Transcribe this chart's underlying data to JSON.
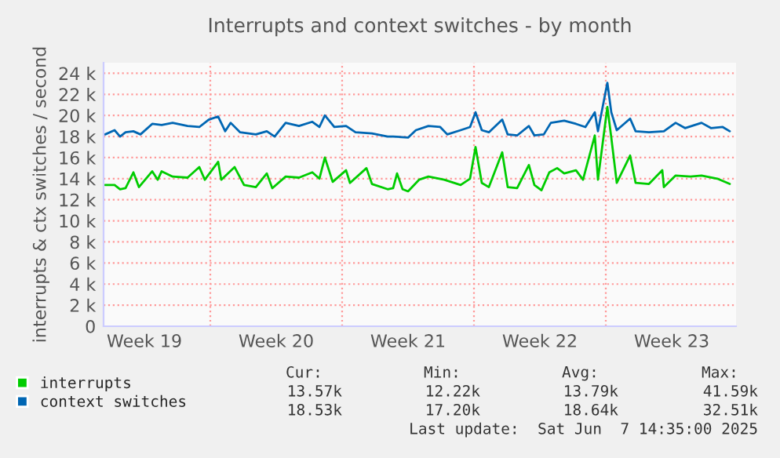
{
  "chart_data": {
    "type": "line",
    "title": "Interrupts and context switches - by month",
    "ylabel": "interrupts & ctx switches / second",
    "xlim": [
      "2025-05-05T08:00",
      "2025-06-07T22:00"
    ],
    "ylim": [
      0,
      25
    ],
    "xticks": [
      {
        "value": "2025-05-07T12:00",
        "label": "Week 19"
      },
      {
        "value": "2025-05-14T12:00",
        "label": "Week 20"
      },
      {
        "value": "2025-05-21T12:00",
        "label": "Week 21"
      },
      {
        "value": "2025-05-28T12:00",
        "label": "Week 22"
      },
      {
        "value": "2025-06-04T12:00",
        "label": "Week 23"
      }
    ],
    "yticks": [
      0,
      {
        "value": 2,
        "label": "2 k"
      },
      {
        "value": 4,
        "label": "4 k"
      },
      {
        "value": 6,
        "label": "6 k"
      },
      {
        "value": 8,
        "label": "8 k"
      },
      {
        "value": 10,
        "label": "10 k"
      },
      {
        "value": 12,
        "label": "12 k"
      },
      {
        "value": 14,
        "label": "14 k"
      },
      {
        "value": 16,
        "label": "16 k"
      },
      {
        "value": 18,
        "label": "18 k"
      },
      {
        "value": 20,
        "label": "20 k"
      },
      {
        "value": 22,
        "label": "22 k"
      },
      {
        "value": 24,
        "label": "24 k"
      }
    ],
    "grid": "y",
    "legend": "bottom left",
    "ref_lines": [
      {
        "axis": "x",
        "value": "2025-05-11",
        "color": "#ff9999",
        "line_style": "dotted"
      },
      {
        "axis": "x",
        "value": "2025-05-18",
        "color": "#ff9999",
        "line_style": "dotted"
      },
      {
        "axis": "x",
        "value": "2025-05-25",
        "color": "#ff9999",
        "line_style": "dotted"
      },
      {
        "axis": "x",
        "value": "2025-06-01",
        "color": "#ff9999",
        "line_style": "dotted"
      }
    ],
    "series": [
      {
        "name": "interrupts",
        "color": "#00cc00",
        "x": [
          "2025-05-05T10:00",
          "2025-05-05T22:00",
          "2025-05-06T05:00",
          "2025-05-06T12:00",
          "2025-05-06T22:00",
          "2025-05-07T05:00",
          "2025-05-07T22:00",
          "2025-05-08T05:00",
          "2025-05-08T10:00",
          "2025-05-09T00:00",
          "2025-05-09T19:00",
          "2025-05-10T10:00",
          "2025-05-10T17:00",
          "2025-05-11T10:00",
          "2025-05-11T14:00",
          "2025-05-12T07:00",
          "2025-05-12T19:00",
          "2025-05-13T10:00",
          "2025-05-14T00:00",
          "2025-05-14T07:00",
          "2025-05-15T00:00",
          "2025-05-15T17:00",
          "2025-05-16T10:00",
          "2025-05-16T19:00",
          "2025-05-17T02:00",
          "2025-05-17T12:00",
          "2025-05-18T05:00",
          "2025-05-18T10:00",
          "2025-05-19T07:00",
          "2025-05-19T14:00",
          "2025-05-20T10:00",
          "2025-05-20T17:00",
          "2025-05-20T22:00",
          "2025-05-21T05:00",
          "2025-05-21T12:00",
          "2025-05-22T02:00",
          "2025-05-22T14:00",
          "2025-05-23T10:00",
          "2025-05-24T07:00",
          "2025-05-24T19:00",
          "2025-05-25T02:00",
          "2025-05-25T10:00",
          "2025-05-25T19:00",
          "2025-05-26T12:00",
          "2025-05-26T19:00",
          "2025-05-27T07:00",
          "2025-05-27T22:00",
          "2025-05-28T05:00",
          "2025-05-28T14:00",
          "2025-05-29T00:00",
          "2025-05-29T10:00",
          "2025-05-29T19:00",
          "2025-05-30T10:00",
          "2025-05-30T19:00",
          "2025-05-31T10:00",
          "2025-05-31T14:00",
          "2025-06-01T02:00",
          "2025-06-01T07:00",
          "2025-06-01T14:00",
          "2025-06-02T07:00",
          "2025-06-02T14:00",
          "2025-06-03T07:00",
          "2025-06-04T00:00",
          "2025-06-04T02:00",
          "2025-06-04T17:00",
          "2025-06-05T12:00",
          "2025-06-06T02:00",
          "2025-06-06T22:00",
          "2025-06-07T14:00"
        ],
        "values": [
          13.4,
          13.4,
          13.0,
          13.1,
          14.6,
          13.2,
          14.7,
          13.9,
          14.7,
          14.2,
          14.1,
          15.1,
          13.9,
          15.6,
          13.9,
          15.1,
          13.4,
          13.2,
          14.5,
          13.1,
          14.2,
          14.1,
          14.6,
          14.0,
          16.0,
          13.7,
          14.8,
          13.6,
          15.0,
          13.5,
          13.0,
          13.1,
          14.5,
          13.0,
          12.8,
          13.9,
          14.2,
          13.9,
          13.4,
          14.0,
          17.0,
          13.6,
          13.2,
          16.5,
          13.2,
          13.1,
          15.3,
          13.4,
          12.9,
          14.6,
          15.0,
          14.5,
          14.8,
          13.9,
          18.1,
          13.9,
          20.8,
          17.9,
          13.6,
          16.2,
          13.6,
          13.5,
          14.8,
          13.2,
          14.3,
          14.2,
          14.3,
          14.0,
          13.5
        ]
      },
      {
        "name": "context switches",
        "color": "#0066b3",
        "x": [
          "2025-05-05T10:00",
          "2025-05-05T22:00",
          "2025-05-06T05:00",
          "2025-05-06T12:00",
          "2025-05-06T22:00",
          "2025-05-07T07:00",
          "2025-05-07T22:00",
          "2025-05-08T10:00",
          "2025-05-09T00:00",
          "2025-05-09T19:00",
          "2025-05-10T10:00",
          "2025-05-10T22:00",
          "2025-05-11T10:00",
          "2025-05-11T19:00",
          "2025-05-12T02:00",
          "2025-05-12T14:00",
          "2025-05-13T10:00",
          "2025-05-14T00:00",
          "2025-05-14T10:00",
          "2025-05-15T00:00",
          "2025-05-15T17:00",
          "2025-05-16T10:00",
          "2025-05-16T19:00",
          "2025-05-17T02:00",
          "2025-05-17T14:00",
          "2025-05-18T05:00",
          "2025-05-18T17:00",
          "2025-05-19T14:00",
          "2025-05-20T10:00",
          "2025-05-20T17:00",
          "2025-05-21T12:00",
          "2025-05-21T22:00",
          "2025-05-22T14:00",
          "2025-05-23T05:00",
          "2025-05-23T14:00",
          "2025-05-24T07:00",
          "2025-05-24T19:00",
          "2025-05-25T02:00",
          "2025-05-25T10:00",
          "2025-05-25T19:00",
          "2025-05-26T12:00",
          "2025-05-26T19:00",
          "2025-05-27T07:00",
          "2025-05-27T22:00",
          "2025-05-28T05:00",
          "2025-05-28T17:00",
          "2025-05-29T02:00",
          "2025-05-29T19:00",
          "2025-05-30T10:00",
          "2025-05-30T22:00",
          "2025-05-31T10:00",
          "2025-05-31T14:00",
          "2025-06-01T02:00",
          "2025-06-01T07:00",
          "2025-06-01T14:00",
          "2025-06-02T07:00",
          "2025-06-02T14:00",
          "2025-06-03T07:00",
          "2025-06-04T02:00",
          "2025-06-04T17:00",
          "2025-06-05T05:00",
          "2025-06-06T02:00",
          "2025-06-06T14:00",
          "2025-06-07T05:00",
          "2025-06-07T14:00"
        ],
        "values": [
          18.2,
          18.6,
          18.0,
          18.4,
          18.5,
          18.2,
          19.2,
          19.1,
          19.3,
          19.0,
          18.9,
          19.6,
          19.9,
          18.5,
          19.3,
          18.4,
          18.2,
          18.5,
          18.0,
          19.3,
          19.0,
          19.4,
          18.9,
          20.0,
          18.9,
          19.0,
          18.4,
          18.3,
          18.0,
          18.0,
          17.9,
          18.6,
          19.0,
          18.9,
          18.2,
          18.6,
          18.9,
          20.3,
          18.6,
          18.4,
          19.6,
          18.2,
          18.1,
          19.0,
          18.1,
          18.2,
          19.3,
          19.5,
          19.2,
          18.9,
          20.3,
          18.5,
          23.1,
          20.3,
          18.6,
          19.7,
          18.5,
          18.4,
          18.5,
          19.3,
          18.8,
          19.3,
          18.8,
          18.9,
          18.5
        ]
      }
    ],
    "annotations": [
      "Cur:",
      "Min:",
      "Avg:",
      "Max:",
      "13.57k",
      "12.22k",
      "13.79k",
      "41.59k",
      "18.53k",
      "17.20k",
      "18.64k",
      "32.51k",
      "Last update:  Sat Jun  7 14:35:00 2025"
    ]
  }
}
